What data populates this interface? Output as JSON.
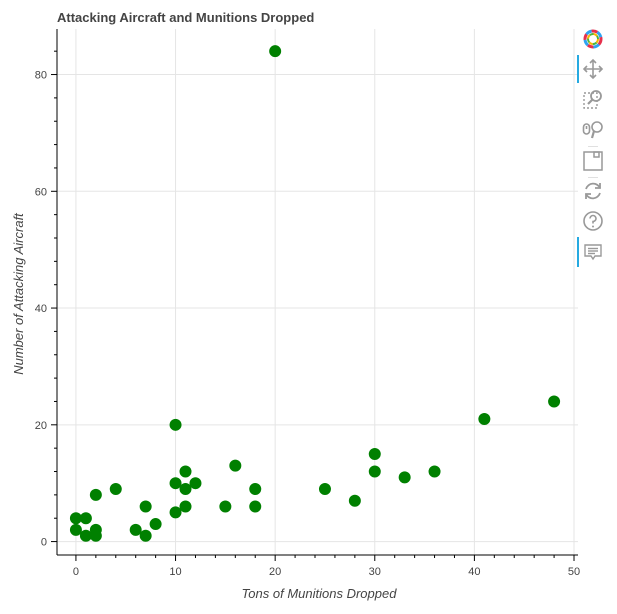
{
  "chart_data": {
    "type": "scatter",
    "title": "Attacking Aircraft and Munitions Dropped",
    "xlabel": "Tons of Munitions Dropped",
    "ylabel": "Number of Attacking Aircraft",
    "xlim": [
      -1.9,
      50.4
    ],
    "ylim": [
      -2.3,
      87.8
    ],
    "xticks": [
      0,
      10,
      20,
      30,
      40,
      50
    ],
    "yticks": [
      0,
      20,
      40,
      60,
      80
    ],
    "grid": true,
    "marker_color": "#008000",
    "points": [
      {
        "x": 20,
        "y": 84
      },
      {
        "x": 48,
        "y": 24
      },
      {
        "x": 41,
        "y": 21
      },
      {
        "x": 10,
        "y": 20
      },
      {
        "x": 30,
        "y": 15
      },
      {
        "x": 16,
        "y": 13
      },
      {
        "x": 11,
        "y": 12
      },
      {
        "x": 30,
        "y": 12
      },
      {
        "x": 36,
        "y": 12
      },
      {
        "x": 33,
        "y": 11
      },
      {
        "x": 10,
        "y": 10
      },
      {
        "x": 12,
        "y": 10
      },
      {
        "x": 4,
        "y": 9
      },
      {
        "x": 11,
        "y": 9
      },
      {
        "x": 18,
        "y": 9
      },
      {
        "x": 25,
        "y": 9
      },
      {
        "x": 2,
        "y": 8
      },
      {
        "x": 28,
        "y": 7
      },
      {
        "x": 7,
        "y": 6
      },
      {
        "x": 11,
        "y": 6
      },
      {
        "x": 15,
        "y": 6
      },
      {
        "x": 18,
        "y": 6
      },
      {
        "x": 10,
        "y": 5
      },
      {
        "x": 0,
        "y": 4
      },
      {
        "x": 1,
        "y": 4
      },
      {
        "x": 8,
        "y": 3
      },
      {
        "x": 0,
        "y": 2
      },
      {
        "x": 2,
        "y": 2
      },
      {
        "x": 6,
        "y": 2
      },
      {
        "x": 1,
        "y": 1
      },
      {
        "x": 2,
        "y": 1
      },
      {
        "x": 7,
        "y": 1
      }
    ]
  },
  "toolbar": {
    "logo_icon": "bokeh-logo-icon",
    "tools": [
      {
        "icon": "pan-icon",
        "active": true
      },
      {
        "icon": "box-zoom-icon",
        "active": false
      },
      {
        "icon": "wheel-zoom-icon",
        "active": false
      },
      {
        "icon": "save-icon",
        "active": false
      },
      {
        "icon": "reset-icon",
        "active": false
      },
      {
        "icon": "help-icon",
        "active": false
      },
      {
        "icon": "hover-icon",
        "active": true
      }
    ]
  }
}
